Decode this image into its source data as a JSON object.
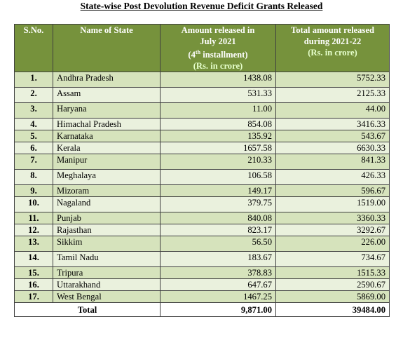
{
  "title": "State-wise Post Devolution Revenue Deficit Grants Released",
  "headers": {
    "sno": "S.No.",
    "state": "Name of State",
    "july_line1": "Amount released in",
    "july_line2": "July 2021",
    "july_line3a": "(4",
    "july_line3sup": "th",
    "july_line3b": " installment)",
    "july_unit": "(Rs. in crore)",
    "total_line1": "Total amount released",
    "total_line2": "during 2021-22",
    "total_unit": "(Rs. in crore)"
  },
  "rows": [
    {
      "sno": "1.",
      "state": "Andhra Pradesh",
      "july": "1438.08",
      "total": "5752.33"
    },
    {
      "sno": "2.",
      "state": "Assam",
      "july": "531.33",
      "total": "2125.33"
    },
    {
      "sno": "3.",
      "state": "Haryana",
      "july": "11.00",
      "total": "44.00"
    },
    {
      "sno": "4.",
      "state": "Himachal Pradesh",
      "july": "854.08",
      "total": "3416.33"
    },
    {
      "sno": "5.",
      "state": "Karnataka",
      "july": "135.92",
      "total": "543.67"
    },
    {
      "sno": "6.",
      "state": "Kerala",
      "july": "1657.58",
      "total": "6630.33"
    },
    {
      "sno": "7.",
      "state": "Manipur",
      "july": "210.33",
      "total": "841.33"
    },
    {
      "sno": "8.",
      "state": "Meghalaya",
      "july": "106.58",
      "total": "426.33"
    },
    {
      "sno": "9.",
      "state": "Mizoram",
      "july": "149.17",
      "total": "596.67"
    },
    {
      "sno": "10.",
      "state": "Nagaland",
      "july": "379.75",
      "total": "1519.00"
    },
    {
      "sno": "11.",
      "state": "Punjab",
      "july": "840.08",
      "total": "3360.33"
    },
    {
      "sno": "12.",
      "state": "Rajasthan",
      "july": "823.17",
      "total": "3292.67"
    },
    {
      "sno": "13.",
      "state": "Sikkim",
      "july": "56.50",
      "total": "226.00"
    },
    {
      "sno": "14.",
      "state": "Tamil Nadu",
      "july": "183.67",
      "total": "734.67"
    },
    {
      "sno": "15.",
      "state": "Tripura",
      "july": "378.83",
      "total": "1515.33"
    },
    {
      "sno": "16.",
      "state": "Uttarakhand",
      "july": "647.67",
      "total": "2590.67"
    },
    {
      "sno": "17.",
      "state": "West Bengal",
      "july": "1467.25",
      "total": "5869.00"
    }
  ],
  "total_row": {
    "label": "Total",
    "july": "9,871.00",
    "total": "39484.00"
  },
  "colors": {
    "header_bg": "#76923c",
    "row_odd": "#d6e3bc",
    "row_even": "#eaf1dd",
    "unit_text": "#e6ffcc"
  }
}
